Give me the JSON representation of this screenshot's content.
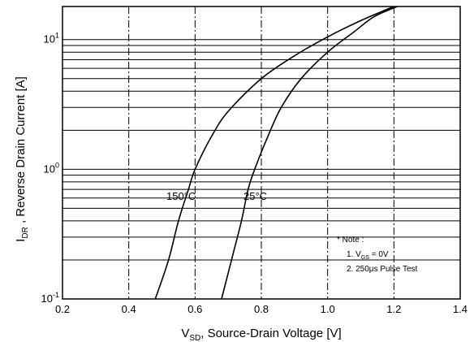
{
  "chart_data": {
    "type": "line",
    "x_axis": {
      "label_main": "V",
      "label_sub": "SD",
      "label_rest": ", Source-Drain Voltage  [V]",
      "range": [
        0.2,
        1.4
      ],
      "ticks": [
        0.2,
        0.4,
        0.6,
        0.8,
        1.0,
        1.2,
        1.4
      ],
      "tick_labels": [
        "0.2",
        "0.4",
        "0.6",
        "0.8",
        "1.0",
        "1.2",
        "1.4"
      ]
    },
    "y_axis": {
      "label_main": "I",
      "label_sub": "DR",
      "label_rest": " , Reverse Drain Current  [A]",
      "scale": "log",
      "range": [
        0.1,
        18
      ],
      "decades": [
        {
          "value": 0.1,
          "base": "10",
          "exp": "-1"
        },
        {
          "value": 1,
          "base": "10",
          "exp": "0"
        },
        {
          "value": 10,
          "base": "10",
          "exp": "1"
        }
      ]
    },
    "grid": true,
    "series": [
      {
        "name": "150°C",
        "points": [
          [
            0.48,
            0.1
          ],
          [
            0.52,
            0.2
          ],
          [
            0.55,
            0.4
          ],
          [
            0.58,
            0.7
          ],
          [
            0.6,
            1.0
          ],
          [
            0.65,
            1.8
          ],
          [
            0.7,
            2.8
          ],
          [
            0.8,
            5.0
          ],
          [
            0.9,
            7.5
          ],
          [
            1.0,
            10.5
          ],
          [
            1.1,
            14
          ],
          [
            1.2,
            18
          ]
        ]
      },
      {
        "name": "25°C",
        "points": [
          [
            0.68,
            0.1
          ],
          [
            0.71,
            0.2
          ],
          [
            0.74,
            0.4
          ],
          [
            0.76,
            0.7
          ],
          [
            0.78,
            1.0
          ],
          [
            0.82,
            1.8
          ],
          [
            0.86,
            3.0
          ],
          [
            0.92,
            5.0
          ],
          [
            1.0,
            8.0
          ],
          [
            1.08,
            11.5
          ],
          [
            1.14,
            15
          ],
          [
            1.21,
            18
          ]
        ]
      }
    ],
    "annotations": {
      "note_title": "* Note :",
      "note_line1_pre": "1. V",
      "note_line1_sub": "GS",
      "note_line1_post": " = 0V",
      "note_line2": "2. 250μs Pulse Test"
    }
  }
}
